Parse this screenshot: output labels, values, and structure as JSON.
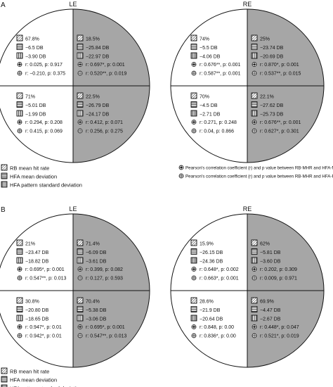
{
  "colors": {
    "shaded": "#a6a6a6",
    "white": "#ffffff",
    "line": "#111111"
  },
  "legend": {
    "rb": "RB mean hit rate",
    "md": "HFA mean deviation",
    "psd": "HFA pattern standard deviation",
    "pearson_md": "Pearson's correlation coefficient (r) and p value between RB-MHR and HFA-MD",
    "pearson_psd": "Pearson's correlation coefficient (r) and p value between RB-MHR and HFA-PSD"
  },
  "panels": [
    {
      "label": "A",
      "eyes": [
        {
          "title": "LE",
          "quadrants": [
            {
              "pos": "tl",
              "shaded": false,
              "rb": "67.8%",
              "md": "−6.5 DB",
              "psd": "−3.90 DB",
              "r_md": "r: 0.025, p: 0.917",
              "r_psd": "r: −0.210, p: 0.375"
            },
            {
              "pos": "tr",
              "shaded": true,
              "rb": "18.5%",
              "md": "−25.84 DB",
              "psd": "−22.97 DB",
              "r_md": "r: 0.697*, p: 0.001",
              "r_psd": "r: 0.520**, p: 0.019"
            },
            {
              "pos": "bl",
              "shaded": false,
              "rb": "71%",
              "md": "−5.01 DB",
              "psd": "−1.99 DB",
              "r_md": "r: 0.294, p: 0.208",
              "r_psd": "r: 0.415, p: 0.069"
            },
            {
              "pos": "br",
              "shaded": true,
              "rb": "22.5%",
              "md": "−26.79 DB",
              "psd": "−24.17 DB",
              "r_md": "r: 0.412, p: 0.071",
              "r_psd": "r: 0.256, p: 0.275"
            }
          ]
        },
        {
          "title": "RE",
          "quadrants": [
            {
              "pos": "tl",
              "shaded": false,
              "rb": "74%",
              "md": "−5.5 DB",
              "psd": "−4.06 DB",
              "r_md": "r: 0.676**, p: 0.001",
              "r_psd": "r: 0.587**, p: 0.001"
            },
            {
              "pos": "tr",
              "shaded": true,
              "rb": "25%",
              "md": "−23.74 DB",
              "psd": "−20.69 DB",
              "r_md": "r: 0.870*, p: 0.001",
              "r_psd": "r: 0.537**, p: 0.015"
            },
            {
              "pos": "bl",
              "shaded": false,
              "rb": "70%",
              "md": "−4.5 DB",
              "psd": "−2.71 DB",
              "r_md": "r: 0.271, p: 0.248",
              "r_psd": "r: 0.04, p: 0.866"
            },
            {
              "pos": "br",
              "shaded": true,
              "rb": "22.1%",
              "md": "−27.62 DB",
              "psd": "−25.73 DB",
              "r_md": "r: 0.676**, p: 0.001",
              "r_psd": "r: 0.627*, p: 0.301"
            }
          ]
        }
      ]
    },
    {
      "label": "B",
      "eyes": [
        {
          "title": "LE",
          "quadrants": [
            {
              "pos": "tl",
              "shaded": false,
              "rb": "21%",
              "md": "−23.47 DB",
              "psd": "−18.82 DB",
              "r_md": "r: 0.695*, p: 0.001",
              "r_psd": "r: 0.547**, p: 0.013"
            },
            {
              "pos": "tr",
              "shaded": true,
              "rb": "71.4%",
              "md": "−6.09 DB",
              "psd": "−3.61 DB",
              "r_md": "r: 0.399, p: 0.082",
              "r_psd": "r: 0.127, p: 0.593"
            },
            {
              "pos": "bl",
              "shaded": false,
              "rb": "30.8%",
              "md": "−20.80 DB",
              "psd": "−18.65 DB",
              "r_md": "r: 0.947*, p: 0.01",
              "r_psd": "r: 0.942*, p: 0.01"
            },
            {
              "pos": "br",
              "shaded": true,
              "rb": "70.4%",
              "md": "−5.38 DB",
              "psd": "−3.06 DB",
              "r_md": "r: 0.695*, p: 0.001",
              "r_psd": "r: 0.547**, p: 0.013"
            }
          ]
        },
        {
          "title": "RE",
          "quadrants": [
            {
              "pos": "tl",
              "shaded": false,
              "rb": "15.9%",
              "md": "−26.15 DB",
              "psd": "−24.36 DB",
              "r_md": "r: 0.648*, p: 0.002",
              "r_psd": "r: 0.663*, p: 0.001"
            },
            {
              "pos": "tr",
              "shaded": true,
              "rb": "62%",
              "md": "−5.81 DB",
              "psd": "−3.60 DB",
              "r_md": "r: 0.202, p: 0.309",
              "r_psd": "r: 0.009, p: 0.971"
            },
            {
              "pos": "bl",
              "shaded": false,
              "rb": "28.6%",
              "md": "−21.9 DB",
              "psd": "−20.64 DB",
              "r_md": "r: 0.848, p: 0.00",
              "r_psd": "r: 0.836*, p: 0.00"
            },
            {
              "pos": "br",
              "shaded": true,
              "rb": "69.9%",
              "md": "−4.47 DB",
              "psd": "−2.67 DB",
              "r_md": "r: 0.448*, p: 0.047",
              "r_psd": "r: 0.521*, p: 0.019"
            }
          ]
        }
      ]
    }
  ]
}
